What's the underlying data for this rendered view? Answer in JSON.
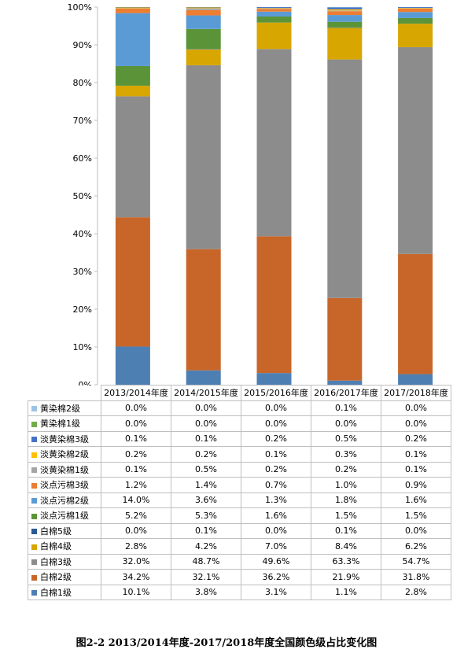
{
  "chart_data": {
    "type": "stacked-bar-100",
    "categories": [
      "2013/2014年度",
      "2014/2015年度",
      "2015/2016年度",
      "2016/2017年度",
      "2017/2018年度"
    ],
    "ylim": [
      0,
      100
    ],
    "yticks": [
      "0%",
      "10%",
      "20%",
      "30%",
      "40%",
      "50%",
      "60%",
      "70%",
      "80%",
      "90%",
      "100%"
    ],
    "grid": false,
    "legend": "table-below",
    "series": [
      {
        "name": "白棉1级",
        "color": "#4e7fb3",
        "values": [
          10.1,
          3.8,
          3.1,
          1.1,
          2.8
        ],
        "labels": [
          "10.1%",
          "3.8%",
          "3.1%",
          "1.1%",
          "2.8%"
        ]
      },
      {
        "name": "白棉2级",
        "color": "#c8662a",
        "values": [
          34.2,
          32.1,
          36.2,
          21.9,
          31.8
        ],
        "labels": [
          "34.2%",
          "32.1%",
          "36.2%",
          "21.9%",
          "31.8%"
        ]
      },
      {
        "name": "白棉3级",
        "color": "#8c8c8c",
        "values": [
          32.0,
          48.7,
          49.6,
          63.3,
          54.7
        ],
        "labels": [
          "32.0%",
          "48.7%",
          "49.6%",
          "63.3%",
          "54.7%"
        ]
      },
      {
        "name": "白棉4级",
        "color": "#d8a600",
        "values": [
          2.8,
          4.2,
          7.0,
          8.4,
          6.2
        ],
        "labels": [
          "2.8%",
          "4.2%",
          "7.0%",
          "8.4%",
          "6.2%"
        ]
      },
      {
        "name": "白棉5级",
        "color": "#2c5a93",
        "values": [
          0.0,
          0.1,
          0.0,
          0.1,
          0.0
        ],
        "labels": [
          "0.0%",
          "0.1%",
          "0.0%",
          "0.1%",
          "0.0%"
        ]
      },
      {
        "name": "淡点污棉1级",
        "color": "#5b9438",
        "values": [
          5.2,
          5.3,
          1.6,
          1.5,
          1.5
        ],
        "labels": [
          "5.2%",
          "5.3%",
          "1.6%",
          "1.5%",
          "1.5%"
        ]
      },
      {
        "name": "淡点污棉2级",
        "color": "#5b9bd5",
        "values": [
          14.0,
          3.6,
          1.3,
          1.8,
          1.6
        ],
        "labels": [
          "14.0%",
          "3.6%",
          "1.3%",
          "1.8%",
          "1.6%"
        ]
      },
      {
        "name": "淡点污棉3级",
        "color": "#ed7d31",
        "values": [
          1.2,
          1.4,
          0.7,
          1.0,
          0.9
        ],
        "labels": [
          "1.2%",
          "1.4%",
          "0.7%",
          "1.0%",
          "0.9%"
        ]
      },
      {
        "name": "淡黄染棉1级",
        "color": "#a5a5a5",
        "values": [
          0.1,
          0.5,
          0.2,
          0.2,
          0.1
        ],
        "labels": [
          "0.1%",
          "0.5%",
          "0.2%",
          "0.2%",
          "0.1%"
        ]
      },
      {
        "name": "淡黄染棉2级",
        "color": "#ffc000",
        "values": [
          0.2,
          0.2,
          0.1,
          0.3,
          0.1
        ],
        "labels": [
          "0.2%",
          "0.2%",
          "0.1%",
          "0.3%",
          "0.1%"
        ]
      },
      {
        "name": "淡黄染棉3级",
        "color": "#4472c4",
        "values": [
          0.1,
          0.1,
          0.2,
          0.5,
          0.2
        ],
        "labels": [
          "0.1%",
          "0.1%",
          "0.2%",
          "0.5%",
          "0.2%"
        ]
      },
      {
        "name": "黄染棉1级",
        "color": "#70ad47",
        "values": [
          0.0,
          0.0,
          0.0,
          0.0,
          0.0
        ],
        "labels": [
          "0.0%",
          "0.0%",
          "0.0%",
          "0.0%",
          "0.0%"
        ]
      },
      {
        "name": "黄染棉2级",
        "color": "#9dc3e6",
        "values": [
          0.0,
          0.0,
          0.0,
          0.1,
          0.0
        ],
        "labels": [
          "0.0%",
          "0.0%",
          "0.0%",
          "0.1%",
          "0.0%"
        ]
      }
    ]
  },
  "caption": "图2-2 2013/2014年度-2017/2018年度全国颜色级占比变化图"
}
